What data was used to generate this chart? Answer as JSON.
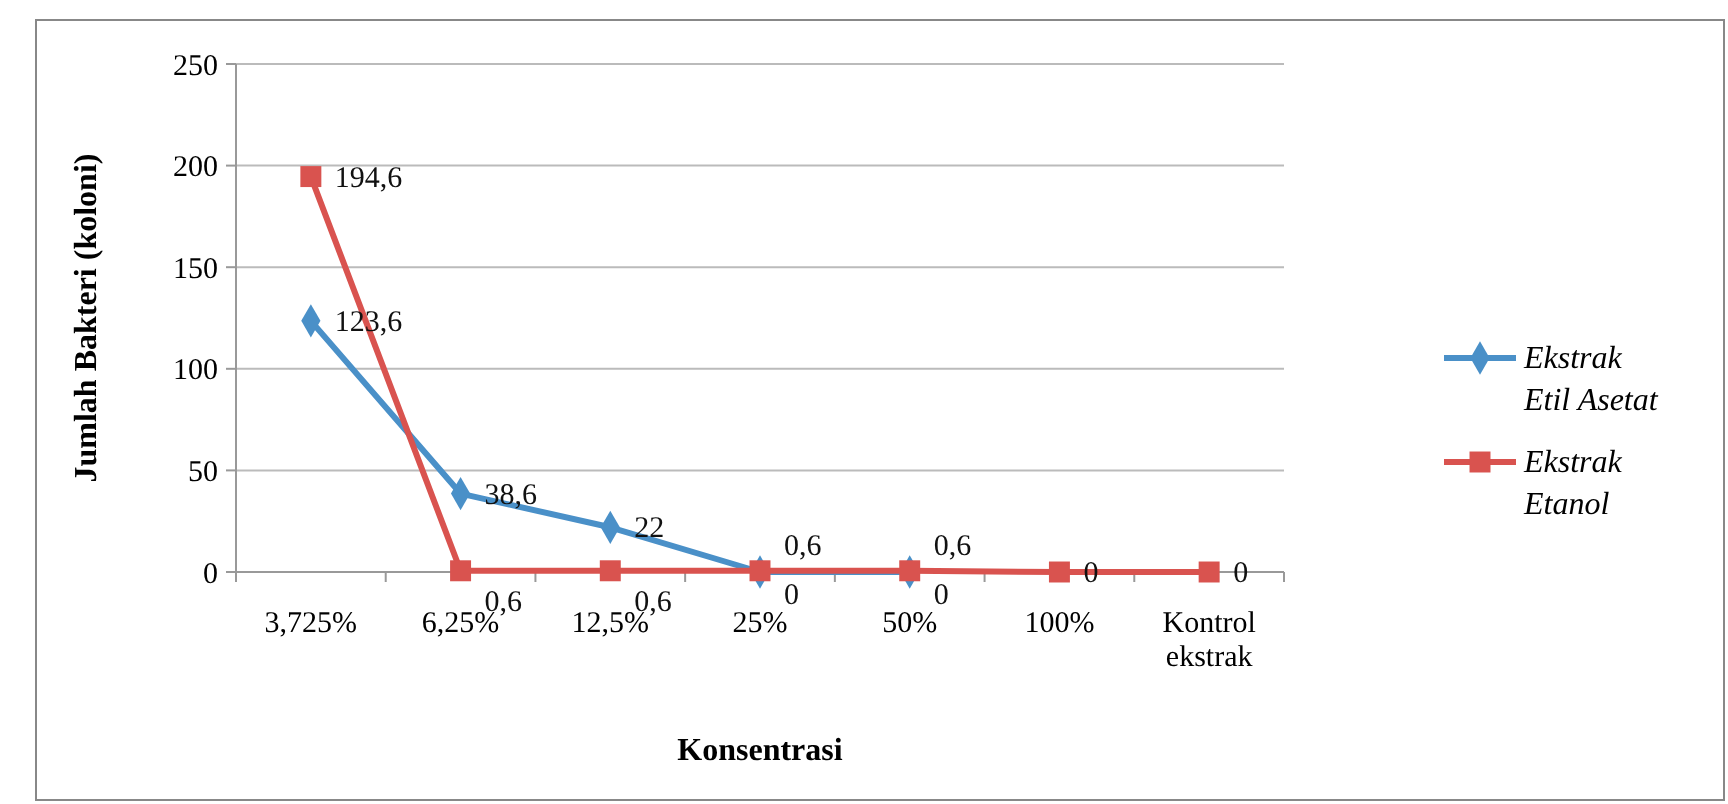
{
  "chart_data": {
    "type": "line",
    "xlabel": "Konsentrasi",
    "ylabel": "Jumlah Bakteri (koloni)",
    "categories": [
      "3,725%",
      "6,25%",
      "12,5%",
      "25%",
      "50%",
      "100%",
      "Kontrol ekstrak"
    ],
    "series": [
      {
        "name": "Ekstrak Etil Asetat",
        "color": "#4a90c8",
        "marker": "diamond",
        "values": [
          123.6,
          38.6,
          22,
          0,
          0,
          null,
          null
        ],
        "value_labels": [
          "123,6",
          "38,6",
          "22",
          "0",
          "0",
          null,
          null
        ]
      },
      {
        "name": "Ekstrak Etanol",
        "color": "#d9534f",
        "marker": "square",
        "values": [
          194.6,
          0.6,
          0.6,
          0.6,
          0.6,
          0,
          0
        ],
        "value_labels": [
          "194,6",
          "0,6",
          "0,6",
          "0,6",
          "0,6",
          "0",
          "0"
        ]
      }
    ],
    "ylim": [
      0,
      250
    ],
    "yticks": [
      0,
      50,
      100,
      150,
      200,
      250
    ],
    "grid": "y",
    "legend": "right"
  }
}
